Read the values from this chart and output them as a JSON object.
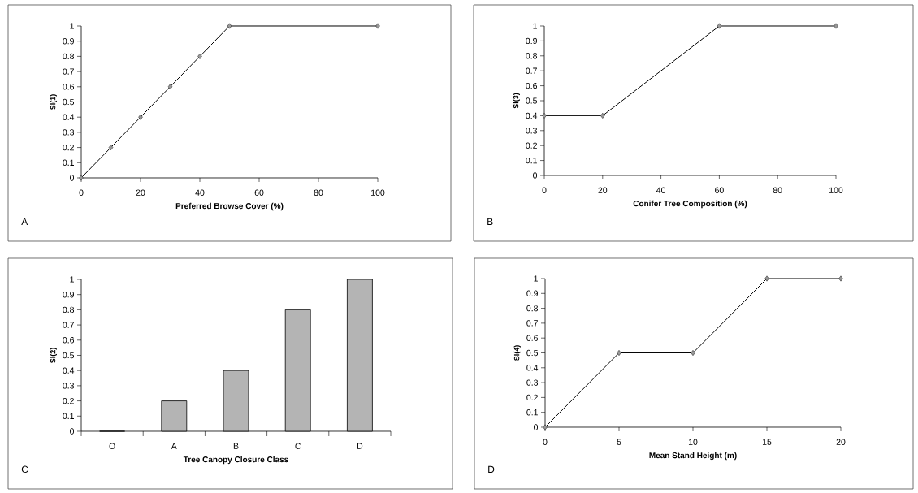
{
  "chart_data": [
    {
      "type": "line",
      "xlabel": "Preferred Browse Cover (%)",
      "ylabel": "SI(1)",
      "x": [
        0,
        10,
        20,
        30,
        40,
        50,
        100
      ],
      "values": [
        0,
        0.2,
        0.4,
        0.6,
        0.8,
        1,
        1
      ],
      "color": "#000000",
      "marker": "diamond",
      "xlim": [
        0,
        100
      ],
      "xticks": [
        0,
        20,
        40,
        60,
        80,
        100
      ],
      "ylim": [
        0,
        1
      ],
      "yticks": [
        0,
        0.1,
        0.2,
        0.3,
        0.4,
        0.5,
        0.6,
        0.7,
        0.8,
        0.9,
        1
      ],
      "annotations": [
        "A"
      ]
    },
    {
      "type": "line",
      "xlabel": "Conifer Tree Composition (%)",
      "ylabel": "SI(3)",
      "x": [
        0,
        20,
        60,
        100
      ],
      "values": [
        0.4,
        0.4,
        1,
        1
      ],
      "color": "#000000",
      "marker": "diamond",
      "xlim": [
        0,
        100
      ],
      "xticks": [
        0,
        20,
        40,
        60,
        80,
        100
      ],
      "ylim": [
        0,
        1
      ],
      "yticks": [
        0,
        0.1,
        0.2,
        0.3,
        0.4,
        0.5,
        0.6,
        0.7,
        0.8,
        0.9,
        1
      ],
      "annotations": [
        "B"
      ]
    },
    {
      "type": "bar",
      "xlabel": "Tree Canopy Closure Class",
      "ylabel": "SI(2)",
      "categories": [
        "O",
        "A",
        "B",
        "C",
        "D"
      ],
      "values": [
        0,
        0.2,
        0.4,
        0.8,
        1
      ],
      "color": "#b4b4b4",
      "ylim": [
        0,
        1
      ],
      "yticks": [
        0,
        0.1,
        0.2,
        0.3,
        0.4,
        0.5,
        0.6,
        0.7,
        0.8,
        0.9,
        1
      ],
      "annotations": [
        "C"
      ]
    },
    {
      "type": "line",
      "xlabel": "Mean Stand Height (m)",
      "ylabel": "SI(4)",
      "x": [
        0,
        5,
        10,
        15,
        20
      ],
      "values": [
        0,
        0.5,
        0.5,
        1,
        1
      ],
      "color": "#000000",
      "marker": "diamond",
      "xlim": [
        0,
        20
      ],
      "xticks": [
        0,
        5,
        10,
        15,
        20
      ],
      "ylim": [
        0,
        1
      ],
      "yticks": [
        0,
        0.1,
        0.2,
        0.3,
        0.4,
        0.5,
        0.6,
        0.7,
        0.8,
        0.9,
        1
      ],
      "annotations": [
        "D"
      ]
    }
  ]
}
